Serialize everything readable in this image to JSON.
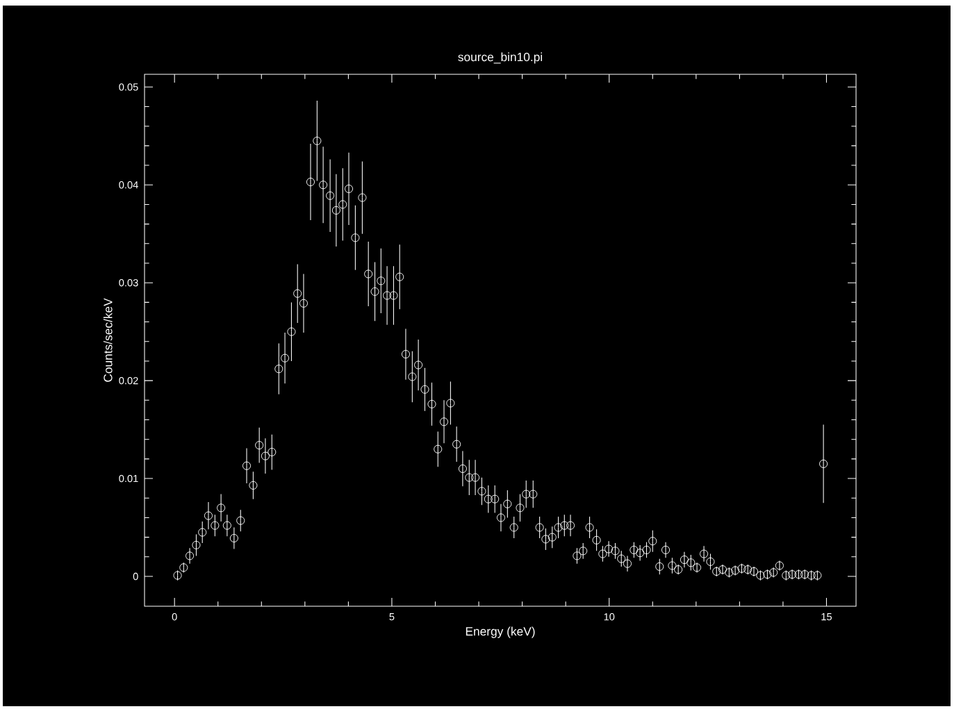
{
  "chart_data": {
    "type": "scatter",
    "title": "source_bin10.pi",
    "xlabel": "Energy (keV)",
    "ylabel": "Counts/sec/keV",
    "xlim": [
      -0.69,
      15.68
    ],
    "ylim": [
      -0.00305,
      0.0513
    ],
    "xticks": [
      0,
      5,
      10,
      15
    ],
    "yticks": [
      {
        "value": 0,
        "label": "0"
      },
      {
        "value": 0.01,
        "label": "0.01"
      },
      {
        "value": 0.02,
        "label": "0.02"
      },
      {
        "value": 0.03,
        "label": "0.03"
      },
      {
        "value": 0.04,
        "label": "0.04"
      },
      {
        "value": 0.05,
        "label": "0.05"
      }
    ],
    "grid": false,
    "marker": "circle",
    "series": [
      {
        "color": "#ffffff",
        "x": [
          0.07,
          0.21,
          0.35,
          0.5,
          0.64,
          0.78,
          0.93,
          1.07,
          1.21,
          1.37,
          1.52,
          1.66,
          1.81,
          1.95,
          2.09,
          2.24,
          2.4,
          2.54,
          2.69,
          2.83,
          2.97,
          3.13,
          3.28,
          3.42,
          3.58,
          3.72,
          3.87,
          4.01,
          4.16,
          4.32,
          4.46,
          4.61,
          4.75,
          4.89,
          5.04,
          5.18,
          5.32,
          5.47,
          5.61,
          5.76,
          5.92,
          6.06,
          6.2,
          6.35,
          6.49,
          6.63,
          6.78,
          6.92,
          7.07,
          7.22,
          7.37,
          7.51,
          7.66,
          7.81,
          7.95,
          8.09,
          8.25,
          8.4,
          8.54,
          8.69,
          8.83,
          8.97,
          9.11,
          9.26,
          9.4,
          9.55,
          9.71,
          9.85,
          9.99,
          10.14,
          10.28,
          10.42,
          10.57,
          10.71,
          10.86,
          11.0,
          11.16,
          11.3,
          11.45,
          11.59,
          11.73,
          11.88,
          12.02,
          12.18,
          12.33,
          12.47,
          12.61,
          12.76,
          12.9,
          13.05,
          13.19,
          13.33,
          13.48,
          13.64,
          13.78,
          13.92,
          14.07,
          14.21,
          14.36,
          14.5,
          14.65,
          14.79,
          14.93
        ],
        "values": [
          0.0001,
          0.0009,
          0.0021,
          0.0032,
          0.0045,
          0.0062,
          0.0052,
          0.007,
          0.0052,
          0.0039,
          0.0057,
          0.0113,
          0.0093,
          0.0134,
          0.0123,
          0.0127,
          0.0212,
          0.0223,
          0.025,
          0.0289,
          0.0279,
          0.0403,
          0.0445,
          0.04,
          0.0389,
          0.0374,
          0.038,
          0.0396,
          0.0346,
          0.0387,
          0.0309,
          0.0291,
          0.0302,
          0.0287,
          0.0287,
          0.0306,
          0.0227,
          0.0204,
          0.0216,
          0.0191,
          0.0176,
          0.013,
          0.0158,
          0.0177,
          0.0135,
          0.011,
          0.0101,
          0.0101,
          0.0087,
          0.0079,
          0.0079,
          0.006,
          0.0074,
          0.005,
          0.007,
          0.0084,
          0.0084,
          0.005,
          0.0038,
          0.004,
          0.005,
          0.0052,
          0.0052,
          0.0021,
          0.0026,
          0.005,
          0.0037,
          0.0023,
          0.0028,
          0.0026,
          0.0018,
          0.0013,
          0.0027,
          0.0024,
          0.0027,
          0.0036,
          0.001,
          0.0027,
          0.0011,
          0.0007,
          0.0017,
          0.0014,
          0.0009,
          0.0023,
          0.0015,
          0.0005,
          0.0007,
          0.0004,
          0.0006,
          0.0008,
          0.0007,
          0.0005,
          0.0001,
          0.0002,
          0.0004,
          0.0011,
          0.0001,
          0.0002,
          0.0002,
          0.0002,
          0.0001,
          0.0001,
          0.0115
        ],
        "errors": [
          0.0005,
          0.0005,
          0.0008,
          0.0011,
          0.0011,
          0.0014,
          0.0011,
          0.0014,
          0.0011,
          0.0011,
          0.0011,
          0.0018,
          0.0014,
          0.0018,
          0.0018,
          0.0018,
          0.0026,
          0.0026,
          0.003,
          0.003,
          0.003,
          0.0039,
          0.0041,
          0.0039,
          0.0037,
          0.0037,
          0.0037,
          0.0037,
          0.0033,
          0.0037,
          0.0033,
          0.003,
          0.0033,
          0.003,
          0.003,
          0.0033,
          0.0026,
          0.0026,
          0.0026,
          0.0022,
          0.0022,
          0.0018,
          0.0022,
          0.0022,
          0.0018,
          0.0018,
          0.0018,
          0.0018,
          0.0014,
          0.0014,
          0.0014,
          0.0014,
          0.0014,
          0.0011,
          0.0014,
          0.0014,
          0.0014,
          0.0011,
          0.0011,
          0.0011,
          0.0011,
          0.0011,
          0.0011,
          0.0008,
          0.0008,
          0.0011,
          0.0011,
          0.0008,
          0.0008,
          0.0008,
          0.0008,
          0.0008,
          0.0008,
          0.0008,
          0.0008,
          0.0011,
          0.0008,
          0.0008,
          0.0008,
          0.0005,
          0.0008,
          0.0008,
          0.0005,
          0.0008,
          0.0008,
          0.0005,
          0.0005,
          0.0005,
          0.0005,
          0.0005,
          0.0005,
          0.0005,
          0.0005,
          0.0005,
          0.0005,
          0.0005,
          0.0005,
          0.0005,
          0.0005,
          0.0005,
          0.0005,
          0.0005,
          0.004
        ]
      }
    ]
  }
}
